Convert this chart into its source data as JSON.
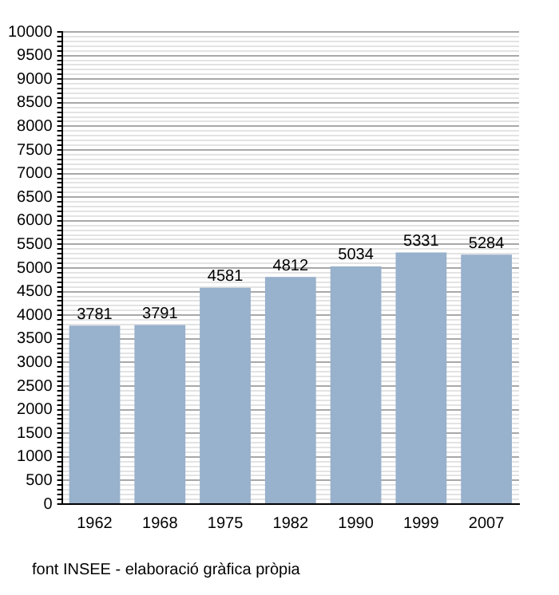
{
  "chart_data": {
    "type": "bar",
    "categories": [
      "1962",
      "1968",
      "1975",
      "1982",
      "1990",
      "1999",
      "2007"
    ],
    "values": [
      3781,
      3791,
      4581,
      4812,
      5034,
      5331,
      5284
    ],
    "color": "#98b1cc",
    "data_labels": true,
    "grid": "y",
    "ylim": [
      0,
      10000
    ],
    "yticks": [
      0,
      {
        "value": 100,
        "label": null
      },
      {
        "value": 200,
        "label": null
      },
      {
        "value": 300,
        "label": null
      },
      {
        "value": 400,
        "label": null
      },
      500,
      {
        "value": 600,
        "label": null
      },
      {
        "value": 700,
        "label": null
      },
      {
        "value": 800,
        "label": null
      },
      {
        "value": 900,
        "label": null
      },
      1000,
      {
        "value": 1100,
        "label": null
      },
      {
        "value": 1200,
        "label": null
      },
      {
        "value": 1300,
        "label": null
      },
      {
        "value": 1400,
        "label": null
      },
      1500,
      {
        "value": 1600,
        "label": null
      },
      {
        "value": 1700,
        "label": null
      },
      {
        "value": 1800,
        "label": null
      },
      {
        "value": 1900,
        "label": null
      },
      2000,
      {
        "value": 2100,
        "label": null
      },
      {
        "value": 2200,
        "label": null
      },
      {
        "value": 2300,
        "label": null
      },
      {
        "value": 2400,
        "label": null
      },
      2500,
      {
        "value": 2600,
        "label": null
      },
      {
        "value": 2700,
        "label": null
      },
      {
        "value": 2800,
        "label": null
      },
      {
        "value": 2900,
        "label": null
      },
      3000,
      {
        "value": 3100,
        "label": null
      },
      {
        "value": 3200,
        "label": null
      },
      {
        "value": 3300,
        "label": null
      },
      {
        "value": 3400,
        "label": null
      },
      3500,
      {
        "value": 3600,
        "label": null
      },
      {
        "value": 3700,
        "label": null
      },
      {
        "value": 3800,
        "label": null
      },
      {
        "value": 3900,
        "label": null
      },
      4000,
      {
        "value": 4100,
        "label": null
      },
      {
        "value": 4200,
        "label": null
      },
      {
        "value": 4300,
        "label": null
      },
      {
        "value": 4400,
        "label": null
      },
      4500,
      {
        "value": 4600,
        "label": null
      },
      {
        "value": 4700,
        "label": null
      },
      {
        "value": 4800,
        "label": null
      },
      {
        "value": 4900,
        "label": null
      },
      5000,
      {
        "value": 5100,
        "label": null
      },
      {
        "value": 5200,
        "label": null
      },
      {
        "value": 5300,
        "label": null
      },
      {
        "value": 5400,
        "label": null
      },
      5500,
      {
        "value": 5600,
        "label": null
      },
      {
        "value": 5700,
        "label": null
      },
      {
        "value": 5800,
        "label": null
      },
      {
        "value": 5900,
        "label": null
      },
      6000,
      {
        "value": 6100,
        "label": null
      },
      {
        "value": 6200,
        "label": null
      },
      {
        "value": 6300,
        "label": null
      },
      {
        "value": 6400,
        "label": null
      },
      6500,
      {
        "value": 6600,
        "label": null
      },
      {
        "value": 6700,
        "label": null
      },
      {
        "value": 6800,
        "label": null
      },
      {
        "value": 6900,
        "label": null
      },
      7000,
      {
        "value": 7100,
        "label": null
      },
      {
        "value": 7200,
        "label": null
      },
      {
        "value": 7300,
        "label": null
      },
      {
        "value": 7400,
        "label": null
      },
      7500,
      {
        "value": 7600,
        "label": null
      },
      {
        "value": 7700,
        "label": null
      },
      {
        "value": 7800,
        "label": null
      },
      {
        "value": 7900,
        "label": null
      },
      8000,
      {
        "value": 8100,
        "label": null
      },
      {
        "value": 8200,
        "label": null
      },
      {
        "value": 8300,
        "label": null
      },
      {
        "value": 8400,
        "label": null
      },
      8500,
      {
        "value": 8600,
        "label": null
      },
      {
        "value": 8700,
        "label": null
      },
      {
        "value": 8800,
        "label": null
      },
      {
        "value": 8900,
        "label": null
      },
      9000,
      {
        "value": 9100,
        "label": null
      },
      {
        "value": 9200,
        "label": null
      },
      {
        "value": 9300,
        "label": null
      },
      {
        "value": 9400,
        "label": null
      },
      9500,
      {
        "value": 9600,
        "label": null
      },
      {
        "value": 9700,
        "label": null
      },
      {
        "value": 9800,
        "label": null
      },
      {
        "value": 9900,
        "label": null
      },
      10000
    ],
    "annotations": [
      "font INSEE - elaboració gràfica pròpia"
    ]
  }
}
